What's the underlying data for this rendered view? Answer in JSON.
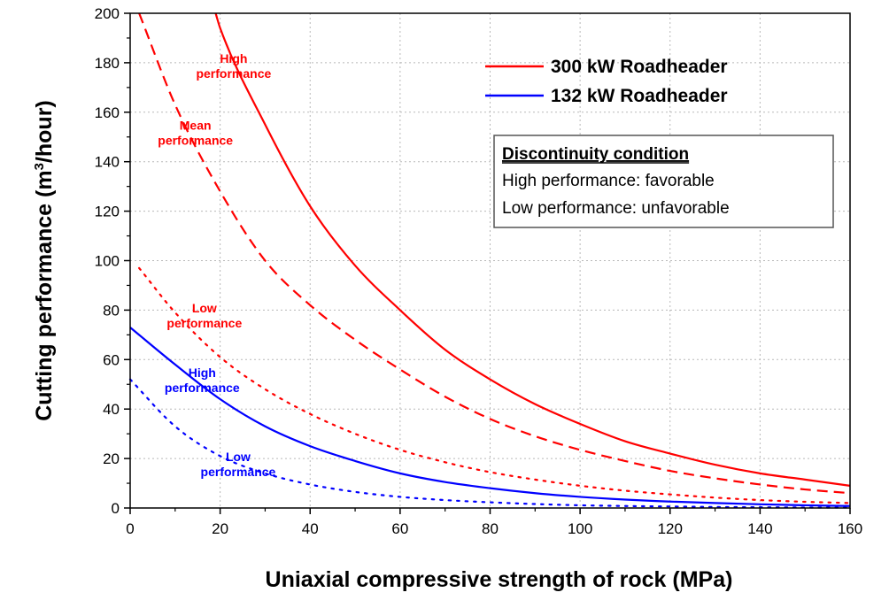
{
  "chart_data": {
    "type": "line",
    "xlabel": "Uniaxial compressive strength of rock (MPa)",
    "ylabel_prefix": "Cutting performance (m",
    "ylabel_sup": "3",
    "ylabel_suffix": "/hour)",
    "xlim": [
      0,
      160
    ],
    "ylim": [
      0,
      200
    ],
    "xticks": [
      0,
      20,
      40,
      60,
      80,
      100,
      120,
      140,
      160
    ],
    "yticks": [
      0,
      20,
      40,
      60,
      80,
      100,
      120,
      140,
      160,
      180,
      200
    ],
    "grid": true,
    "colors": {
      "red": "#ff0000",
      "blue": "#0000ff"
    },
    "series": [
      {
        "name": "300 kW Roadheader",
        "group": "red",
        "style": "solid",
        "x": [
          19,
          20,
          30,
          40,
          50,
          60,
          70,
          80,
          90,
          100,
          110,
          120,
          130,
          140,
          150,
          160
        ],
        "y": [
          200,
          194,
          155,
          122,
          98,
          80,
          64,
          52,
          42,
          34,
          27,
          22,
          17.5,
          14,
          11.5,
          9
        ]
      },
      {
        "group": "red",
        "style": "dashed",
        "x": [
          2,
          10,
          20,
          30,
          40,
          50,
          60,
          70,
          80,
          90,
          100,
          110,
          120,
          130,
          140,
          150,
          160
        ],
        "y": [
          200,
          163,
          128,
          100,
          82,
          68,
          56,
          45,
          36,
          29,
          23.5,
          19,
          15,
          12,
          9.5,
          7.5,
          6
        ]
      },
      {
        "group": "red",
        "style": "dotted",
        "x": [
          2,
          10,
          20,
          30,
          40,
          50,
          60,
          70,
          80,
          90,
          100,
          110,
          120,
          130,
          140,
          150,
          160
        ],
        "y": [
          97,
          79,
          61,
          48,
          38,
          30,
          23.5,
          18.5,
          14.5,
          11.5,
          9,
          7,
          5.5,
          4.2,
          3.2,
          2.5,
          2
        ]
      },
      {
        "name": "132 kW Roadheader",
        "group": "blue",
        "style": "solid",
        "x": [
          0,
          10,
          20,
          30,
          40,
          50,
          60,
          70,
          80,
          90,
          100,
          110,
          120,
          130,
          140,
          150,
          160
        ],
        "y": [
          73,
          58,
          44,
          33,
          25,
          19,
          14,
          10.5,
          8,
          6,
          4.5,
          3.4,
          2.6,
          2,
          1.5,
          1.1,
          0.8
        ]
      },
      {
        "group": "blue",
        "style": "dotted",
        "x": [
          0,
          10,
          20,
          30,
          40,
          50,
          60,
          70,
          80,
          90,
          100,
          110,
          120,
          130,
          140,
          150,
          160
        ],
        "y": [
          52,
          33,
          21,
          14,
          9.5,
          6.5,
          4.5,
          3.2,
          2.3,
          1.6,
          1.1,
          0.8,
          0.6,
          0.4,
          0.3,
          0.2,
          0.15
        ]
      }
    ],
    "annotations": [
      {
        "lines": [
          "High",
          "performance"
        ],
        "color": "red",
        "x": 23,
        "y": 180
      },
      {
        "lines": [
          "Mean",
          "performance"
        ],
        "color": "red",
        "x": 14.5,
        "y": 153
      },
      {
        "lines": [
          "Low",
          "performance"
        ],
        "color": "red",
        "x": 16.5,
        "y": 79
      },
      {
        "lines": [
          "High",
          "performance"
        ],
        "color": "blue",
        "x": 16,
        "y": 53
      },
      {
        "lines": [
          "Low",
          "performance"
        ],
        "color": "blue",
        "x": 24,
        "y": 19
      }
    ],
    "legend": {
      "position": "top-right",
      "entries": [
        {
          "label": "300 kW Roadheader",
          "color": "red"
        },
        {
          "label": "132 kW Roadheader",
          "color": "blue"
        }
      ]
    },
    "info_box": {
      "title": "Discontinuity condition",
      "lines": [
        "High performance: favorable",
        "Low performance: unfavorable"
      ]
    }
  }
}
